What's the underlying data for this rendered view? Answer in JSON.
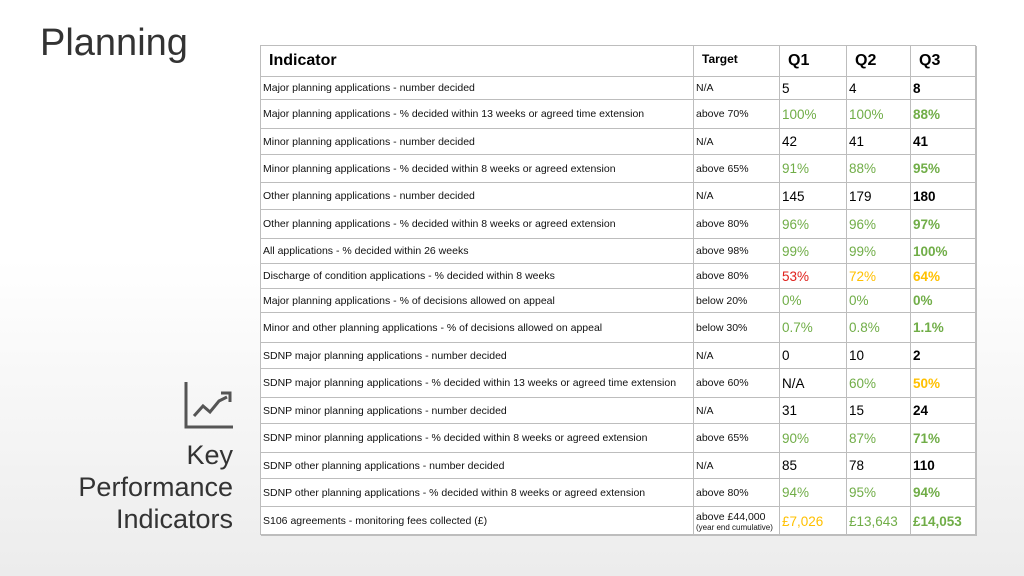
{
  "title": "Planning",
  "side_label": {
    "lines": [
      "Key",
      "Performance",
      "Indicators"
    ]
  },
  "table": {
    "header": {
      "indicator": "Indicator",
      "target": "Target",
      "quarters": [
        "Q1",
        "Q2",
        "Q3"
      ]
    },
    "rows": [
      {
        "indicator": "Major planning applications - number decided",
        "target": "N/A",
        "values": [
          "5",
          "4",
          "8"
        ],
        "colors": [
          "#000000",
          "#000000",
          "#000000"
        ]
      },
      {
        "indicator": "Major planning applications - % decided within 13 weeks or agreed time extension",
        "target": "above 70%",
        "values": [
          "100%",
          "100%",
          "88%"
        ],
        "colors": [
          "#70ad47",
          "#70ad47",
          "#70ad47"
        ]
      },
      {
        "indicator": "Minor planning applications - number decided",
        "target": "N/A",
        "values": [
          "42",
          "41",
          "41"
        ],
        "colors": [
          "#000000",
          "#000000",
          "#000000"
        ]
      },
      {
        "indicator": "Minor planning applications - % decided within 8 weeks or agreed extension",
        "target": "above 65%",
        "values": [
          "91%",
          "88%",
          "95%"
        ],
        "colors": [
          "#70ad47",
          "#70ad47",
          "#70ad47"
        ]
      },
      {
        "indicator": "Other planning applications - number decided",
        "target": "N/A",
        "values": [
          "145",
          "179",
          "180"
        ],
        "colors": [
          "#000000",
          "#000000",
          "#000000"
        ]
      },
      {
        "indicator": "Other planning applications - % decided within 8 weeks or agreed extension",
        "target": "above 80%",
        "values": [
          "96%",
          "96%",
          "97%"
        ],
        "colors": [
          "#70ad47",
          "#70ad47",
          "#70ad47"
        ]
      },
      {
        "indicator": "All applications - % decided within 26 weeks",
        "target": "above 98%",
        "values": [
          "99%",
          "99%",
          "100%"
        ],
        "colors": [
          "#70ad47",
          "#70ad47",
          "#70ad47"
        ]
      },
      {
        "indicator": "Discharge of condition applications - % decided within 8 weeks",
        "target": "above 80%",
        "values": [
          "53%",
          "72%",
          "64%"
        ],
        "colors": [
          "#e0201b",
          "#ffc000",
          "#ffc000"
        ]
      },
      {
        "indicator": "Major planning applications - % of decisions allowed on appeal",
        "target": "below 20%",
        "values": [
          "0%",
          "0%",
          "0%"
        ],
        "colors": [
          "#70ad47",
          "#70ad47",
          "#70ad47"
        ]
      },
      {
        "indicator": "Minor and other planning applications - % of decisions allowed on appeal",
        "target": "below 30%",
        "values": [
          "0.7%",
          "0.8%",
          "1.1%"
        ],
        "colors": [
          "#70ad47",
          "#70ad47",
          "#70ad47"
        ]
      },
      {
        "indicator": "SDNP major planning applications - number decided",
        "target": "N/A",
        "values": [
          "0",
          "10",
          "2"
        ],
        "colors": [
          "#000000",
          "#000000",
          "#000000"
        ]
      },
      {
        "indicator": "SDNP major planning applications - % decided within 13 weeks or agreed time extension",
        "target": "above 60%",
        "values": [
          "N/A",
          "60%",
          "50%"
        ],
        "colors": [
          "#000000",
          "#70ad47",
          "#ffc000"
        ]
      },
      {
        "indicator": "SDNP minor planning applications - number decided",
        "target": "N/A",
        "values": [
          "31",
          "15",
          "24"
        ],
        "colors": [
          "#000000",
          "#000000",
          "#000000"
        ]
      },
      {
        "indicator": "SDNP minor planning applications - % decided within 8 weeks or agreed extension",
        "target": "above 65%",
        "values": [
          "90%",
          "87%",
          "71%"
        ],
        "colors": [
          "#70ad47",
          "#70ad47",
          "#70ad47"
        ]
      },
      {
        "indicator": "SDNP other planning applications - number decided",
        "target": "N/A",
        "values": [
          "85",
          "78",
          "110"
        ],
        "colors": [
          "#000000",
          "#000000",
          "#000000"
        ]
      },
      {
        "indicator": "SDNP other planning applications - % decided within 8 weeks or agreed extension",
        "target": "above 80%",
        "values": [
          "94%",
          "95%",
          "94%"
        ],
        "colors": [
          "#70ad47",
          "#70ad47",
          "#70ad47"
        ]
      },
      {
        "indicator": "S106 agreements - monitoring fees collected (£)",
        "target": "above £44,000",
        "target_note": "(year end cumulative)",
        "values": [
          "£7,026",
          "£13,643",
          "£14,053"
        ],
        "colors": [
          "#ffc000",
          "#70ad47",
          "#70ad47"
        ]
      }
    ]
  }
}
